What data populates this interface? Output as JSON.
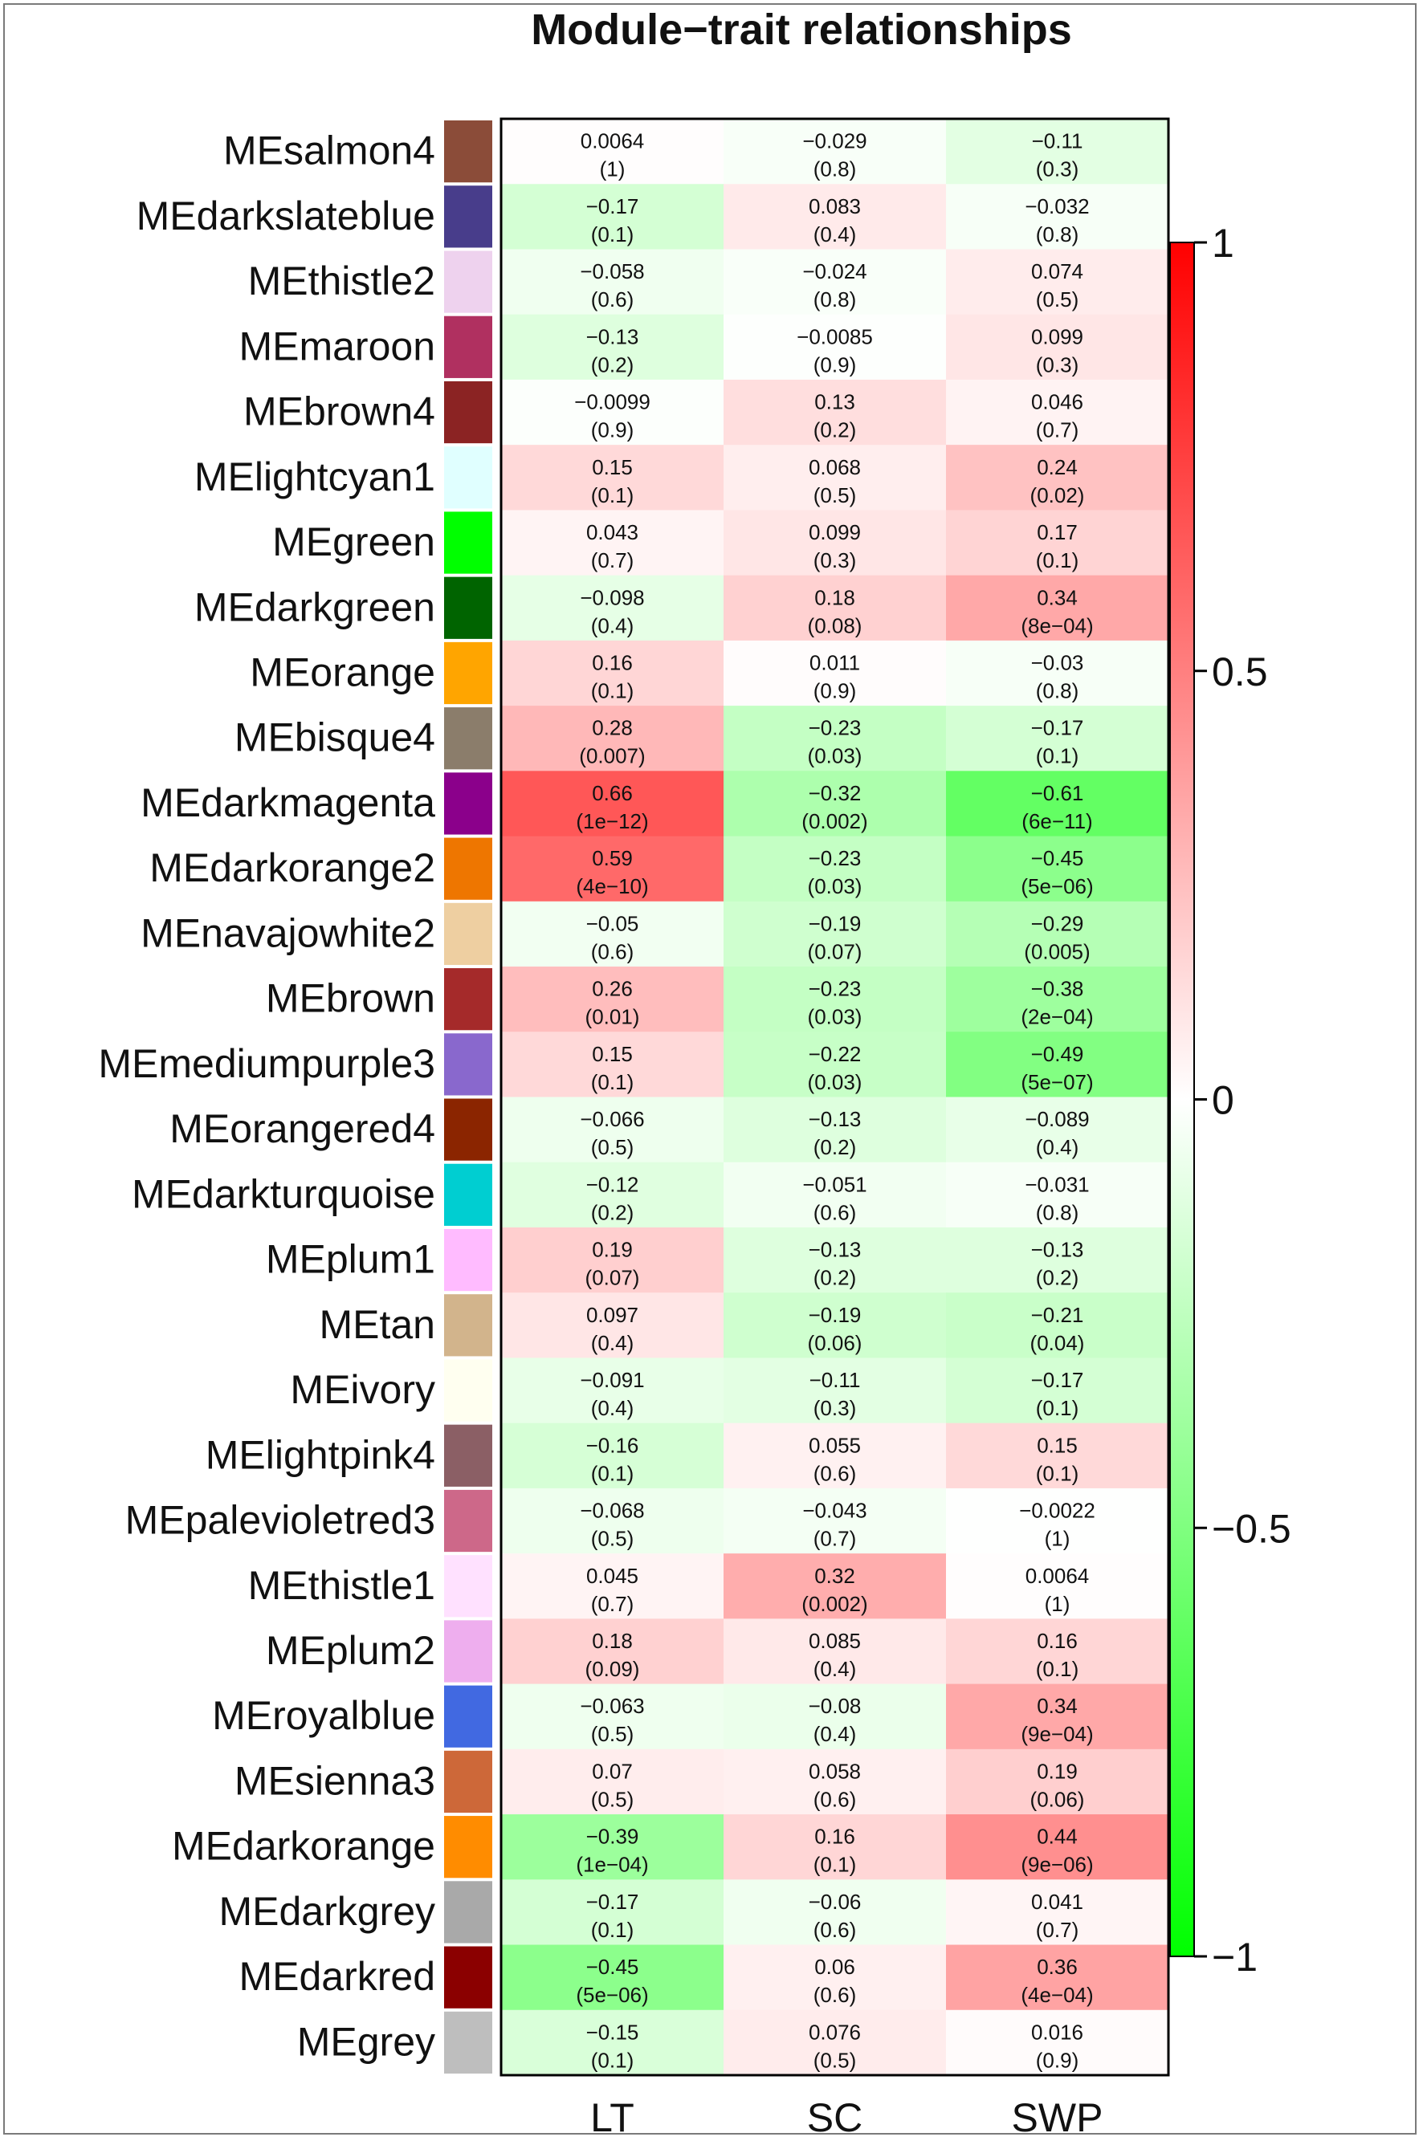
{
  "chart_data": {
    "type": "heatmap",
    "title": "Module−trait relationships",
    "columns": [
      "LT",
      "SC",
      "SWP"
    ],
    "rows": [
      {
        "name": "MEsalmon4",
        "color": "#8B4C39",
        "cor": [
          0.0064,
          -0.029,
          -0.11
        ],
        "cor_label": [
          "0.0064",
          "−0.029",
          "−0.11"
        ],
        "p": [
          "(1)",
          "(0.8)",
          "(0.3)"
        ]
      },
      {
        "name": "MEdarkslateblue",
        "color": "#483D8B",
        "cor": [
          -0.17,
          0.083,
          -0.032
        ],
        "cor_label": [
          "−0.17",
          "0.083",
          "−0.032"
        ],
        "p": [
          "(0.1)",
          "(0.4)",
          "(0.8)"
        ]
      },
      {
        "name": "MEthistle2",
        "color": "#EED2EE",
        "cor": [
          -0.058,
          -0.024,
          0.074
        ],
        "cor_label": [
          "−0.058",
          "−0.024",
          "0.074"
        ],
        "p": [
          "(0.6)",
          "(0.8)",
          "(0.5)"
        ]
      },
      {
        "name": "MEmaroon",
        "color": "#B03060",
        "cor": [
          -0.13,
          -0.0085,
          0.099
        ],
        "cor_label": [
          "−0.13",
          "−0.0085",
          "0.099"
        ],
        "p": [
          "(0.2)",
          "(0.9)",
          "(0.3)"
        ]
      },
      {
        "name": "MEbrown4",
        "color": "#8B2323",
        "cor": [
          -0.0099,
          0.13,
          0.046
        ],
        "cor_label": [
          "−0.0099",
          "0.13",
          "0.046"
        ],
        "p": [
          "(0.9)",
          "(0.2)",
          "(0.7)"
        ]
      },
      {
        "name": "MElightcyan1",
        "color": "#E0FFFF",
        "cor": [
          0.15,
          0.068,
          0.24
        ],
        "cor_label": [
          "0.15",
          "0.068",
          "0.24"
        ],
        "p": [
          "(0.1)",
          "(0.5)",
          "(0.02)"
        ]
      },
      {
        "name": "MEgreen",
        "color": "#00FF00",
        "cor": [
          0.043,
          0.099,
          0.17
        ],
        "cor_label": [
          "0.043",
          "0.099",
          "0.17"
        ],
        "p": [
          "(0.7)",
          "(0.3)",
          "(0.1)"
        ]
      },
      {
        "name": "MEdarkgreen",
        "color": "#006400",
        "cor": [
          -0.098,
          0.18,
          0.34
        ],
        "cor_label": [
          "−0.098",
          "0.18",
          "0.34"
        ],
        "p": [
          "(0.4)",
          "(0.08)",
          "(8e−04)"
        ]
      },
      {
        "name": "MEorange",
        "color": "#FFA500",
        "cor": [
          0.16,
          0.011,
          -0.03
        ],
        "cor_label": [
          "0.16",
          "0.011",
          "−0.03"
        ],
        "p": [
          "(0.1)",
          "(0.9)",
          "(0.8)"
        ]
      },
      {
        "name": "MEbisque4",
        "color": "#8B7D6B",
        "cor": [
          0.28,
          -0.23,
          -0.17
        ],
        "cor_label": [
          "0.28",
          "−0.23",
          "−0.17"
        ],
        "p": [
          "(0.007)",
          "(0.03)",
          "(0.1)"
        ]
      },
      {
        "name": "MEdarkmagenta",
        "color": "#8B008B",
        "cor": [
          0.66,
          -0.32,
          -0.61
        ],
        "cor_label": [
          "0.66",
          "−0.32",
          "−0.61"
        ],
        "p": [
          "(1e−12)",
          "(0.002)",
          "(6e−11)"
        ]
      },
      {
        "name": "MEdarkorange2",
        "color": "#EE7600",
        "cor": [
          0.59,
          -0.23,
          -0.45
        ],
        "cor_label": [
          "0.59",
          "−0.23",
          "−0.45"
        ],
        "p": [
          "(4e−10)",
          "(0.03)",
          "(5e−06)"
        ]
      },
      {
        "name": "MEnavajowhite2",
        "color": "#EECFA1",
        "cor": [
          -0.05,
          -0.19,
          -0.29
        ],
        "cor_label": [
          "−0.05",
          "−0.19",
          "−0.29"
        ],
        "p": [
          "(0.6)",
          "(0.07)",
          "(0.005)"
        ]
      },
      {
        "name": "MEbrown",
        "color": "#A52A2A",
        "cor": [
          0.26,
          -0.23,
          -0.38
        ],
        "cor_label": [
          "0.26",
          "−0.23",
          "−0.38"
        ],
        "p": [
          "(0.01)",
          "(0.03)",
          "(2e−04)"
        ]
      },
      {
        "name": "MEmediumpurple3",
        "color": "#8968CD",
        "cor": [
          0.15,
          -0.22,
          -0.49
        ],
        "cor_label": [
          "0.15",
          "−0.22",
          "−0.49"
        ],
        "p": [
          "(0.1)",
          "(0.03)",
          "(5e−07)"
        ]
      },
      {
        "name": "MEorangered4",
        "color": "#8B2500",
        "cor": [
          -0.066,
          -0.13,
          -0.089
        ],
        "cor_label": [
          "−0.066",
          "−0.13",
          "−0.089"
        ],
        "p": [
          "(0.5)",
          "(0.2)",
          "(0.4)"
        ]
      },
      {
        "name": "MEdarkturquoise",
        "color": "#00CED1",
        "cor": [
          -0.12,
          -0.051,
          -0.031
        ],
        "cor_label": [
          "−0.12",
          "−0.051",
          "−0.031"
        ],
        "p": [
          "(0.2)",
          "(0.6)",
          "(0.8)"
        ]
      },
      {
        "name": "MEplum1",
        "color": "#FFBBFF",
        "cor": [
          0.19,
          -0.13,
          -0.13
        ],
        "cor_label": [
          "0.19",
          "−0.13",
          "−0.13"
        ],
        "p": [
          "(0.07)",
          "(0.2)",
          "(0.2)"
        ]
      },
      {
        "name": "MEtan",
        "color": "#D2B48C",
        "cor": [
          0.097,
          -0.19,
          -0.21
        ],
        "cor_label": [
          "0.097",
          "−0.19",
          "−0.21"
        ],
        "p": [
          "(0.4)",
          "(0.06)",
          "(0.04)"
        ]
      },
      {
        "name": "MEivory",
        "color": "#FFFFF0",
        "cor": [
          -0.091,
          -0.11,
          -0.17
        ],
        "cor_label": [
          "−0.091",
          "−0.11",
          "−0.17"
        ],
        "p": [
          "(0.4)",
          "(0.3)",
          "(0.1)"
        ]
      },
      {
        "name": "MElightpink4",
        "color": "#8B5F65",
        "cor": [
          -0.16,
          0.055,
          0.15
        ],
        "cor_label": [
          "−0.16",
          "0.055",
          "0.15"
        ],
        "p": [
          "(0.1)",
          "(0.6)",
          "(0.1)"
        ]
      },
      {
        "name": "MEpalevioletred3",
        "color": "#CD6889",
        "cor": [
          -0.068,
          -0.043,
          -0.0022
        ],
        "cor_label": [
          "−0.068",
          "−0.043",
          "−0.0022"
        ],
        "p": [
          "(0.5)",
          "(0.7)",
          "(1)"
        ]
      },
      {
        "name": "MEthistle1",
        "color": "#FFE1FF",
        "cor": [
          0.045,
          0.32,
          0.0064
        ],
        "cor_label": [
          "0.045",
          "0.32",
          "0.0064"
        ],
        "p": [
          "(0.7)",
          "(0.002)",
          "(1)"
        ]
      },
      {
        "name": "MEplum2",
        "color": "#EEAEEE",
        "cor": [
          0.18,
          0.085,
          0.16
        ],
        "cor_label": [
          "0.18",
          "0.085",
          "0.16"
        ],
        "p": [
          "(0.09)",
          "(0.4)",
          "(0.1)"
        ]
      },
      {
        "name": "MEroyalblue",
        "color": "#4169E1",
        "cor": [
          -0.063,
          -0.08,
          0.34
        ],
        "cor_label": [
          "−0.063",
          "−0.08",
          "0.34"
        ],
        "p": [
          "(0.5)",
          "(0.4)",
          "(9e−04)"
        ]
      },
      {
        "name": "MEsienna3",
        "color": "#CD6839",
        "cor": [
          0.07,
          0.058,
          0.19
        ],
        "cor_label": [
          "0.07",
          "0.058",
          "0.19"
        ],
        "p": [
          "(0.5)",
          "(0.6)",
          "(0.06)"
        ]
      },
      {
        "name": "MEdarkorange",
        "color": "#FF8C00",
        "cor": [
          -0.39,
          0.16,
          0.44
        ],
        "cor_label": [
          "−0.39",
          "0.16",
          "0.44"
        ],
        "p": [
          "(1e−04)",
          "(0.1)",
          "(9e−06)"
        ]
      },
      {
        "name": "MEdarkgrey",
        "color": "#A9A9A9",
        "cor": [
          -0.17,
          -0.06,
          0.041
        ],
        "cor_label": [
          "−0.17",
          "−0.06",
          "0.041"
        ],
        "p": [
          "(0.1)",
          "(0.6)",
          "(0.7)"
        ]
      },
      {
        "name": "MEdarkred",
        "color": "#8B0000",
        "cor": [
          -0.45,
          0.06,
          0.36
        ],
        "cor_label": [
          "−0.45",
          "0.06",
          "0.36"
        ],
        "p": [
          "(5e−06)",
          "(0.6)",
          "(4e−04)"
        ]
      },
      {
        "name": "MEgrey",
        "color": "#BEBEBE",
        "cor": [
          -0.15,
          0.076,
          0.016
        ],
        "cor_label": [
          "−0.15",
          "0.076",
          "0.016"
        ],
        "p": [
          "(0.1)",
          "(0.5)",
          "(0.9)"
        ]
      }
    ],
    "color_scale": {
      "min": -1,
      "max": 1,
      "low_color": "#00FF00",
      "mid_color": "#FFFFFF",
      "high_color": "#FF0000",
      "ticks": [
        1,
        0.5,
        0,
        -0.5,
        -1
      ],
      "tick_labels": [
        "1",
        "0.5",
        "0",
        "−0.5",
        "−1"
      ]
    }
  }
}
